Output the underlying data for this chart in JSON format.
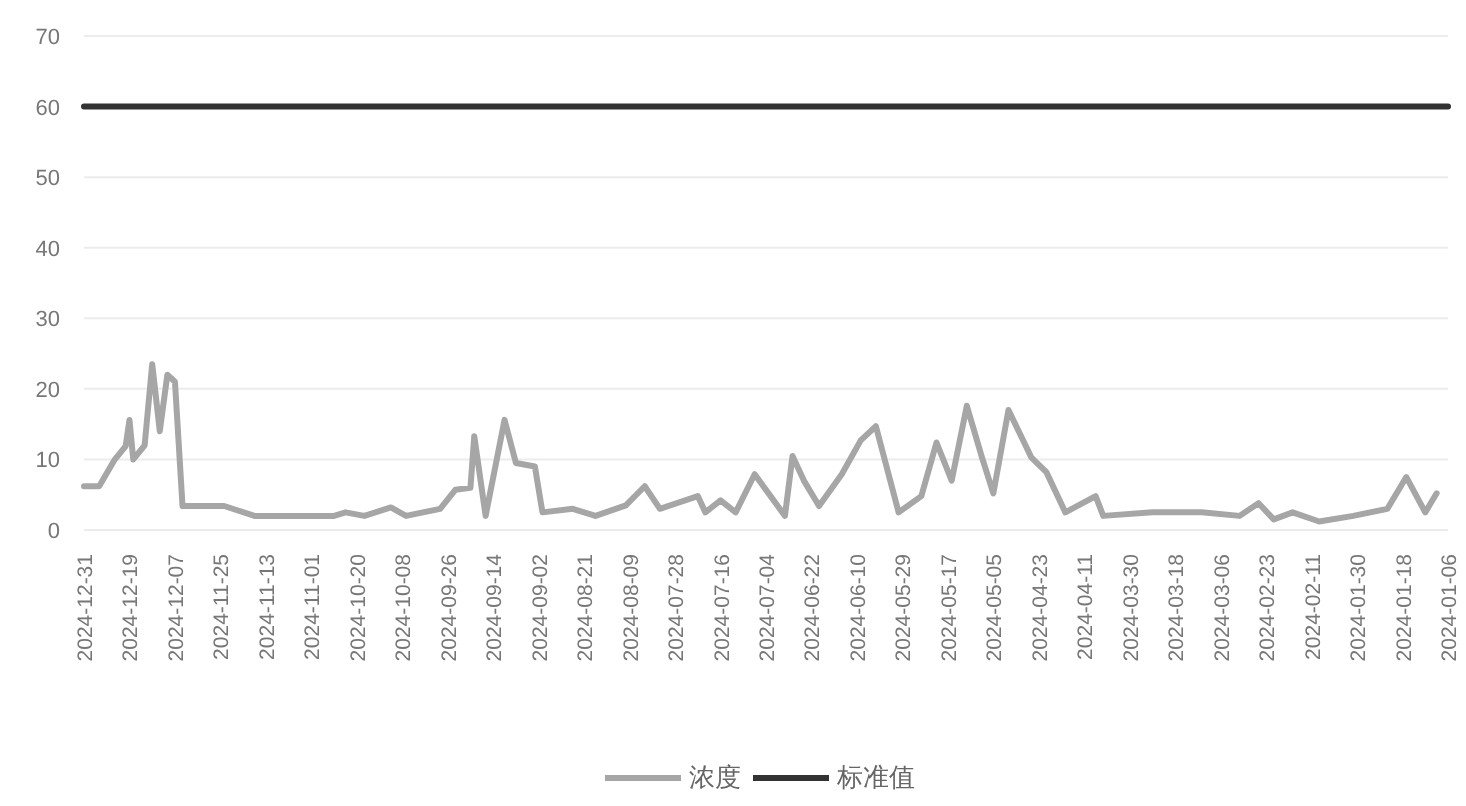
{
  "chart_data": {
    "type": "line",
    "ylim": [
      0,
      70
    ],
    "yticks": [
      0,
      10,
      20,
      30,
      40,
      50,
      60,
      70
    ],
    "xlim": [
      "2024-12-31",
      "2024-01-06"
    ],
    "xticks": [
      "2024-12-31",
      "2024-12-19",
      "2024-12-07",
      "2024-11-25",
      "2024-11-13",
      "2024-11-01",
      "2024-10-20",
      "2024-10-08",
      "2024-09-26",
      "2024-09-14",
      "2024-09-02",
      "2024-08-21",
      "2024-08-09",
      "2024-07-28",
      "2024-07-16",
      "2024-07-04",
      "2024-06-22",
      "2024-06-10",
      "2024-05-29",
      "2024-05-17",
      "2024-05-05",
      "2024-04-23",
      "2024-04-11",
      "2024-03-30",
      "2024-03-18",
      "2024-03-06",
      "2024-02-23",
      "2024-02-11",
      "2024-01-30",
      "2024-01-18",
      "2024-01-06"
    ],
    "grid": "y",
    "legend": "bottom",
    "marker": "none",
    "line_style": "solid",
    "series": [
      {
        "name": "浓度",
        "color": "#a6a6a6",
        "x": [
          "2024-12-31",
          "2024-12-27",
          "2024-12-23",
          "2024-12-20",
          "2024-12-19",
          "2024-12-18",
          "2024-12-15",
          "2024-12-13",
          "2024-12-11",
          "2024-12-09",
          "2024-12-07",
          "2024-12-05",
          "2024-11-24",
          "2024-11-16",
          "2024-10-26",
          "2024-10-23",
          "2024-10-18",
          "2024-10-11",
          "2024-10-07",
          "2024-09-28",
          "2024-09-24",
          "2024-09-20",
          "2024-09-19",
          "2024-09-16",
          "2024-09-11",
          "2024-09-08",
          "2024-09-03",
          "2024-09-01",
          "2024-08-24",
          "2024-08-18",
          "2024-08-10",
          "2024-08-05",
          "2024-08-01",
          "2024-07-22",
          "2024-07-20",
          "2024-07-16",
          "2024-07-12",
          "2024-07-07",
          "2024-06-29",
          "2024-06-27",
          "2024-06-24",
          "2024-06-20",
          "2024-06-14",
          "2024-06-09",
          "2024-06-05",
          "2024-05-30",
          "2024-05-24",
          "2024-05-20",
          "2024-05-16",
          "2024-05-12",
          "2024-05-08",
          "2024-05-05",
          "2024-05-01",
          "2024-04-25",
          "2024-04-21",
          "2024-04-16",
          "2024-04-08",
          "2024-04-06",
          "2024-03-24",
          "2024-03-11",
          "2024-03-01",
          "2024-02-25",
          "2024-02-21",
          "2024-02-16",
          "2024-02-09",
          "2024-01-31",
          "2024-01-22",
          "2024-01-17",
          "2024-01-12",
          "2024-01-09"
        ],
        "values": [
          6.2,
          6.2,
          9.9,
          11.9,
          15.6,
          10,
          12,
          23.5,
          14,
          22,
          21,
          3.4,
          3.4,
          2,
          2,
          2.5,
          2,
          3.2,
          2,
          3,
          5.7,
          6,
          13.3,
          2,
          15.6,
          9.5,
          9,
          2.5,
          3,
          2,
          3.5,
          6.2,
          3,
          4.8,
          2.5,
          4.2,
          2.5,
          7.9,
          2,
          10.5,
          7,
          3.4,
          7.9,
          12.7,
          14.7,
          2.5,
          4.8,
          12.4,
          7,
          17.6,
          10.3,
          5.2,
          17,
          10.3,
          8.2,
          2.5,
          4.8,
          2,
          2.5,
          2.5,
          2,
          3.8,
          1.5,
          2.5,
          1.2,
          2,
          3,
          7.5,
          2.5,
          5.2
        ]
      },
      {
        "name": "标准值",
        "color": "#333333",
        "x": [
          "2024-12-31",
          "2024-01-06"
        ],
        "values": [
          60,
          60
        ]
      }
    ]
  }
}
